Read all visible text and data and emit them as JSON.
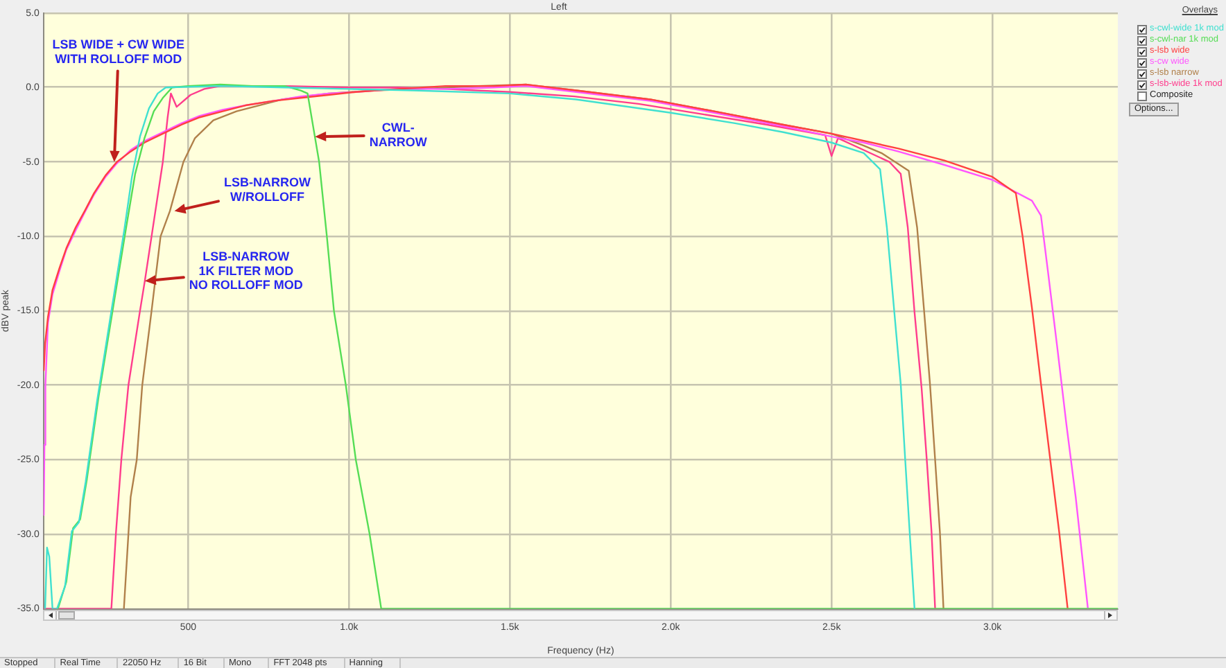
{
  "chart_data": {
    "type": "line",
    "title": "Left",
    "xlabel": "Frequency (Hz)",
    "ylabel": "dBV peak",
    "legend_title": "Overlays",
    "xlim": [
      50,
      3390
    ],
    "ylim": [
      -35,
      5
    ],
    "xticks": [
      500,
      {
        "value": 1000,
        "label": "1.0k"
      },
      {
        "value": 1500,
        "label": "1.5k"
      },
      {
        "value": 2000,
        "label": "2.0k"
      },
      {
        "value": 2500,
        "label": "2.5k"
      },
      {
        "value": 3000,
        "label": "3.0k"
      }
    ],
    "yticks": [
      {
        "value": -35,
        "label": "-35.0"
      },
      {
        "value": -30,
        "label": "-30.0"
      },
      {
        "value": -25,
        "label": "-25.0"
      },
      {
        "value": -20,
        "label": "-20.0"
      },
      {
        "value": -15,
        "label": "-15.0"
      },
      {
        "value": -10,
        "label": "-10.0"
      },
      {
        "value": -5,
        "label": "-5.0"
      },
      {
        "value": 0,
        "label": "0.0"
      },
      {
        "value": 5,
        "label": "5.0"
      }
    ],
    "grid": true,
    "legend": "top right",
    "marker": "none",
    "series": [
      {
        "name": "s-cwl-wide 1k mod",
        "color": "#40e0d0",
        "x": [
          55,
          61,
          68,
          78,
          92,
          117,
          138,
          160,
          181,
          217,
          259,
          301,
          325,
          350,
          378,
          405,
          430,
          600,
          800,
          1000,
          1200,
          1500,
          1706,
          2000,
          2200,
          2350,
          2500,
          2600,
          2651,
          2672,
          2694,
          2715,
          2729,
          2743,
          2758
        ],
        "values": [
          -35,
          -30.9,
          -31.5,
          -35,
          -35,
          -33.5,
          -29.8,
          -29.2,
          -26.5,
          -21.0,
          -15.3,
          -9.6,
          -6.0,
          -3.3,
          -1.4,
          -0.4,
          0.0,
          0.1,
          0.0,
          -0.1,
          -0.2,
          -0.4,
          -0.8,
          -1.7,
          -2.4,
          -3.0,
          -3.7,
          -4.4,
          -5.5,
          -9.4,
          -14.8,
          -19.9,
          -25.0,
          -29.9,
          -35
        ]
      },
      {
        "name": "s-cwl-nar 1k mod",
        "color": "#55dd55",
        "x": [
          95,
          121,
          142,
          164,
          185,
          221,
          264,
          307,
          335,
          364,
          393,
          421,
          450,
          500,
          600,
          700,
          800,
          850,
          871,
          907,
          931,
          953,
          990,
          1021,
          1064,
          1100,
          3390
        ],
        "values": [
          -35,
          -33.2,
          -29.6,
          -29.0,
          -26.3,
          -20.8,
          -15.1,
          -9.4,
          -5.8,
          -3.4,
          -1.6,
          -0.7,
          0.0,
          0.1,
          0.2,
          0.1,
          0.1,
          -0.2,
          -0.4,
          -5.0,
          -10.0,
          -15.0,
          -20.0,
          -25.0,
          -30.0,
          -35,
          -35
        ]
      },
      {
        "name": "s-lsb wide",
        "color": "#ff4040",
        "x": [
          51,
          55,
          64,
          78,
          100,
          121,
          150,
          178,
          207,
          243,
          278,
          321,
          364,
          421,
          479,
          536,
          607,
          678,
          764,
          850,
          936,
          1021,
          1150,
          1300,
          1450,
          1550,
          1706,
          1936,
          2135,
          2350,
          2500,
          2708,
          2851,
          3000,
          3073,
          3094,
          3123,
          3151,
          3180,
          3208,
          3234
        ],
        "values": [
          -19.0,
          -17.2,
          -15.4,
          -13.6,
          -12.1,
          -10.8,
          -9.4,
          -8.3,
          -7.1,
          -5.9,
          -5.0,
          -4.3,
          -3.7,
          -3.1,
          -2.5,
          -2.0,
          -1.6,
          -1.2,
          -0.9,
          -0.7,
          -0.5,
          -0.3,
          -0.1,
          0.1,
          0.1,
          0.2,
          -0.2,
          -0.8,
          -1.6,
          -2.5,
          -3.1,
          -4.1,
          -4.9,
          -6.0,
          -7.1,
          -10.0,
          -14.8,
          -19.9,
          -25.0,
          -29.9,
          -35
        ]
      },
      {
        "name": "s-cw wide",
        "color": "#ff55ff",
        "x": [
          51,
          53,
          56,
          64,
          78,
          100,
          121,
          150,
          178,
          207,
          243,
          278,
          321,
          364,
          421,
          479,
          536,
          607,
          678,
          764,
          850,
          936,
          1021,
          1150,
          1300,
          1450,
          1550,
          1706,
          1936,
          2135,
          2350,
          2500,
          2600,
          2708,
          2851,
          3000,
          3123,
          3151,
          3173,
          3202,
          3230,
          3259,
          3297
        ],
        "values": [
          -28.7,
          -24.0,
          -20.0,
          -15.8,
          -13.9,
          -12.3,
          -10.9,
          -9.6,
          -8.4,
          -7.2,
          -6.0,
          -5.1,
          -4.2,
          -3.6,
          -3.0,
          -2.4,
          -1.9,
          -1.5,
          -1.2,
          -0.9,
          -0.6,
          -0.4,
          -0.3,
          -0.1,
          -0.1,
          0.0,
          0.1,
          -0.3,
          -0.9,
          -1.7,
          -2.6,
          -3.3,
          -3.7,
          -4.3,
          -5.2,
          -6.2,
          -7.6,
          -8.6,
          -12.4,
          -17.5,
          -22.6,
          -27.5,
          -35
        ]
      },
      {
        "name": "s-lsb narrow",
        "color": "#b0804a",
        "x": [
          300,
          321,
          340,
          357,
          386,
          414,
          443,
          485,
          521,
          578,
          650,
          793,
          936,
          1079,
          1222,
          1400,
          1550,
          1706,
          1936,
          2135,
          2350,
          2500,
          2600,
          2655,
          2740,
          2766,
          2787,
          2806,
          2822,
          2837,
          2848
        ],
        "values": [
          -35,
          -27.5,
          -25.0,
          -20.0,
          -15.0,
          -10.0,
          -8.3,
          -5.0,
          -3.4,
          -2.2,
          -1.6,
          -0.8,
          -0.4,
          -0.2,
          -0.1,
          0.1,
          0.2,
          -0.2,
          -0.8,
          -1.6,
          -2.5,
          -3.1,
          -3.9,
          -4.4,
          -5.6,
          -9.4,
          -14.8,
          -19.9,
          -25.0,
          -29.9,
          -35
        ]
      },
      {
        "name": "s-lsb-wide 1k mod",
        "color": "#ff3c8c",
        "x": [
          51,
          261,
          275,
          292,
          314,
          350,
          365,
          386,
          421,
          436,
          446,
          464,
          507,
          550,
          600,
          800,
          1000,
          1150,
          1300,
          1500,
          1700,
          1900,
          2100,
          2300,
          2480,
          2500,
          2520,
          2600,
          2680,
          2715,
          2737,
          2758,
          2780,
          2797,
          2811,
          2822
        ],
        "values": [
          -35,
          -35,
          -30.0,
          -25.0,
          -20.0,
          -15.0,
          -13.0,
          -10.0,
          -5.0,
          -2.0,
          -0.4,
          -1.3,
          -0.5,
          -0.1,
          0.1,
          0.1,
          0.0,
          0.0,
          -0.1,
          -0.3,
          -0.6,
          -1.1,
          -1.8,
          -2.5,
          -3.2,
          -4.6,
          -3.4,
          -4.2,
          -5.0,
          -5.8,
          -9.4,
          -15.1,
          -20.2,
          -25.3,
          -29.9,
          -35
        ]
      }
    ],
    "annotations": [
      {
        "text": "LSB WIDE + CW WIDE\nWITH ROLLOFF MOD",
        "x": 270,
        "y": -5.0
      },
      {
        "text": "LSB-NARROW\nW/ROLLOFF",
        "x": 457,
        "y": -8.3
      },
      {
        "text": "LSB-NARROW\n1K FILTER MOD\nNO ROLLOFF MOD",
        "x": 365,
        "y": -13.0
      },
      {
        "text": "CWL-\nNARROW",
        "x": 894,
        "y": -3.3
      },
      "Composite",
      "Options...",
      "Stopped",
      "Real Time",
      "22050 Hz",
      "16 Bit",
      "Mono",
      "FFT 2048 pts",
      "Hanning"
    ]
  }
}
